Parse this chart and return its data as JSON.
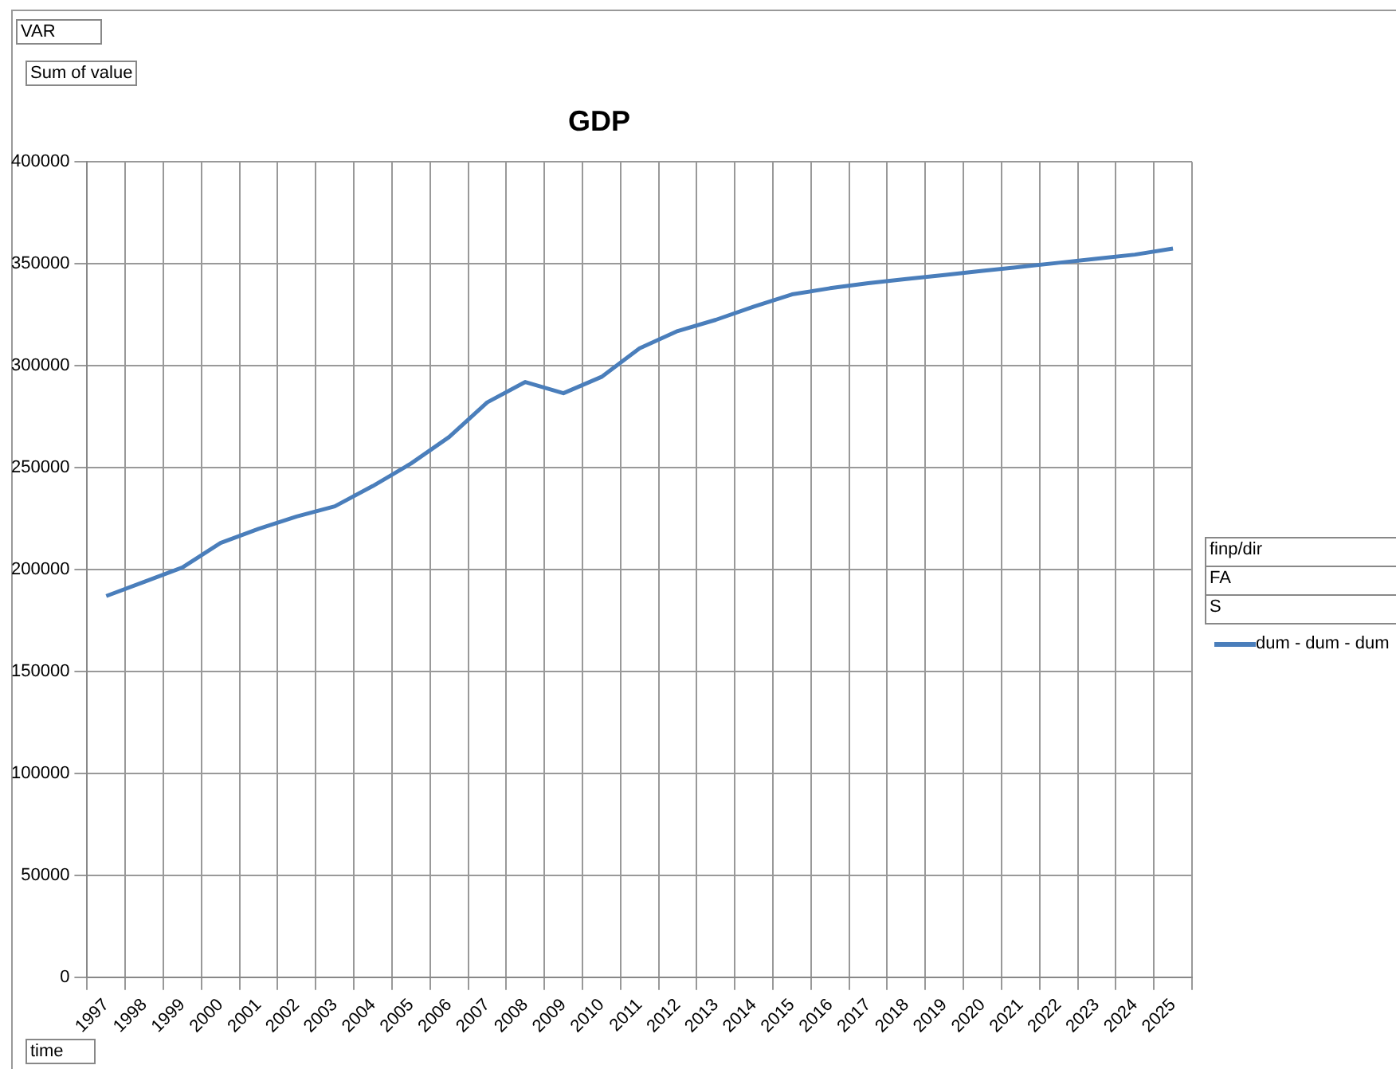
{
  "chart_data": {
    "type": "line",
    "title": "GDP",
    "categories": [
      "1997",
      "1998",
      "1999",
      "2000",
      "2001",
      "2002",
      "2003",
      "2004",
      "2005",
      "2006",
      "2007",
      "2008",
      "2009",
      "2010",
      "2011",
      "2012",
      "2013",
      "2014",
      "2015",
      "2016",
      "2017",
      "2018",
      "2019",
      "2020",
      "2021",
      "2022",
      "2023",
      "2024",
      "2025"
    ],
    "series": [
      {
        "name": "dum - dum - dum",
        "color": "#4a7ebb",
        "values": [
          187000,
          194000,
          201000,
          213000,
          220000,
          226000,
          231000,
          241000,
          252000,
          265000,
          282000,
          292000,
          286500,
          294500,
          308500,
          317000,
          322500,
          329000,
          335000,
          338000,
          340500,
          342500,
          344500,
          346500,
          348500,
          350500,
          352500,
          354500,
          357500
        ]
      }
    ],
    "ylim": [
      0,
      400000
    ],
    "yticks": [
      0,
      50000,
      100000,
      150000,
      200000,
      250000,
      300000,
      350000,
      400000
    ],
    "grid": true,
    "legend": "right",
    "marker": "none",
    "line_style": "solid",
    "annotations": [
      "VAR",
      "Sum of value",
      "time",
      "finp/dir",
      "FA",
      "S"
    ]
  }
}
